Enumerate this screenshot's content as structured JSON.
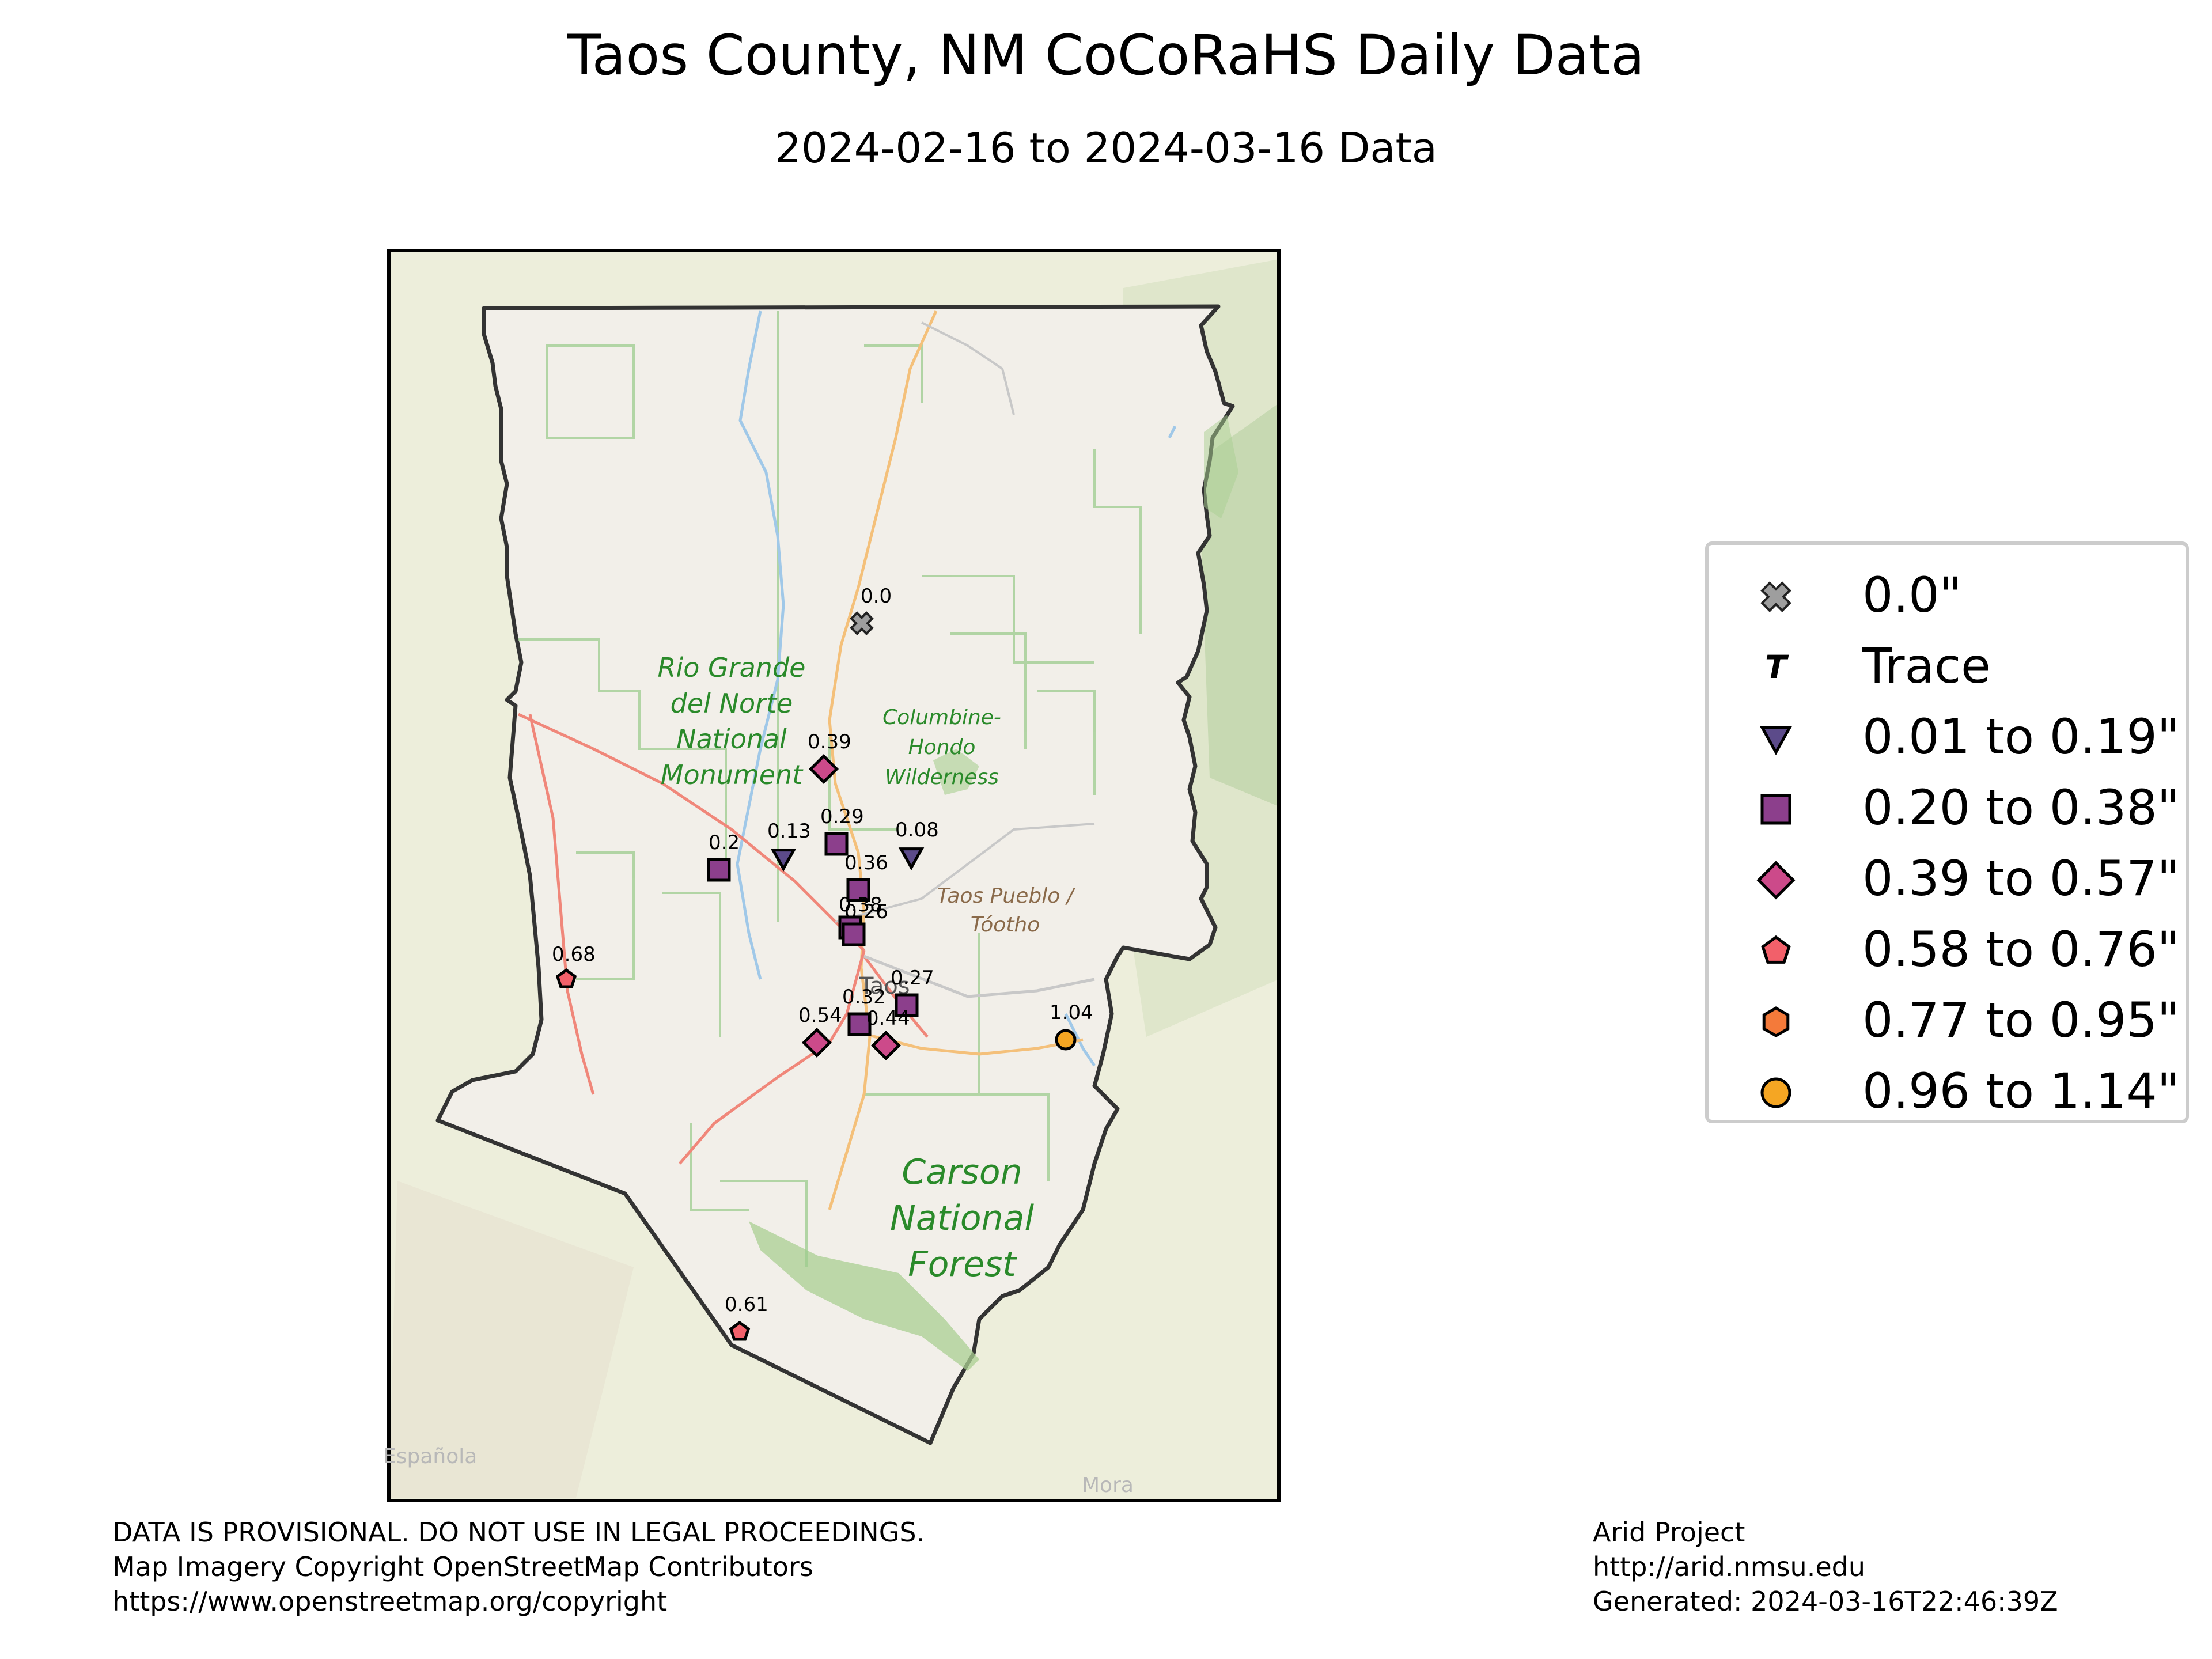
{
  "title": "Taos County, NM CoCoRaHS Daily Data",
  "subtitle": "2024-02-16 to 2024-03-16 Data",
  "map_labels": {
    "rio_grande": [
      "Rio Grande",
      "del Norte",
      "National",
      "Monument"
    ],
    "columbine": [
      "Columbine-",
      "Hondo",
      "Wilderness"
    ],
    "taos_pueblo": [
      "Taos Pueblo /",
      "Tóotho"
    ],
    "carson": [
      "Carson",
      "National",
      "Forest"
    ],
    "espanola": "Española",
    "mora": "Mora",
    "taos": "Taos"
  },
  "legend": [
    {
      "symbol": "x-mark",
      "label": "0.0\"",
      "color": "#9e9e9e"
    },
    {
      "symbol": "T",
      "label": "Trace",
      "color": "#000000"
    },
    {
      "symbol": "triangle-down",
      "label": "0.01 to 0.19\"",
      "color": "#5c4b8a"
    },
    {
      "symbol": "square",
      "label": "0.20 to 0.38\"",
      "color": "#8c3f8c"
    },
    {
      "symbol": "diamond",
      "label": "0.39 to 0.57\"",
      "color": "#cc4a8a"
    },
    {
      "symbol": "pentagon",
      "label": "0.58 to 0.76\"",
      "color": "#f2606a"
    },
    {
      "symbol": "hexagon",
      "label": "0.77 to 0.95\"",
      "color": "#f47a3a"
    },
    {
      "symbol": "circle",
      "label": "0.96 to 1.14\"",
      "color": "#f5a623"
    }
  ],
  "stations": [
    {
      "label": "0.0",
      "value": 0.0,
      "symbol": "x-mark"
    },
    {
      "label": "0.39",
      "value": 0.39,
      "symbol": "diamond"
    },
    {
      "label": "0.29",
      "value": 0.29,
      "symbol": "square"
    },
    {
      "label": "0.08",
      "value": 0.08,
      "symbol": "triangle-down"
    },
    {
      "label": "0.13",
      "value": 0.13,
      "symbol": "triangle-down"
    },
    {
      "label": "0.2",
      "value": 0.2,
      "symbol": "square"
    },
    {
      "label": "0.36",
      "value": 0.36,
      "symbol": "square"
    },
    {
      "label": "0.38",
      "value": 0.38,
      "symbol": "square"
    },
    {
      "label": "0.26",
      "value": 0.26,
      "symbol": "square"
    },
    {
      "label": "0.68",
      "value": 0.68,
      "symbol": "pentagon"
    },
    {
      "label": "0.27",
      "value": 0.27,
      "symbol": "square"
    },
    {
      "label": "0.32",
      "value": 0.32,
      "symbol": "square"
    },
    {
      "label": "0.54",
      "value": 0.54,
      "symbol": "diamond"
    },
    {
      "label": "0.44",
      "value": 0.44,
      "symbol": "diamond"
    },
    {
      "label": "1.04",
      "value": 1.04,
      "symbol": "circle"
    },
    {
      "label": "0.61",
      "value": 0.61,
      "symbol": "pentagon"
    }
  ],
  "footer_left": [
    "DATA IS PROVISIONAL. DO NOT USE IN LEGAL PROCEEDINGS.",
    "Map Imagery Copyright OpenStreetMap Contributors",
    "https://www.openstreetmap.org/copyright"
  ],
  "footer_right": [
    "Arid Project",
    "http://arid.nmsu.edu",
    "Generated: 2024-03-16T22:46:39Z"
  ]
}
